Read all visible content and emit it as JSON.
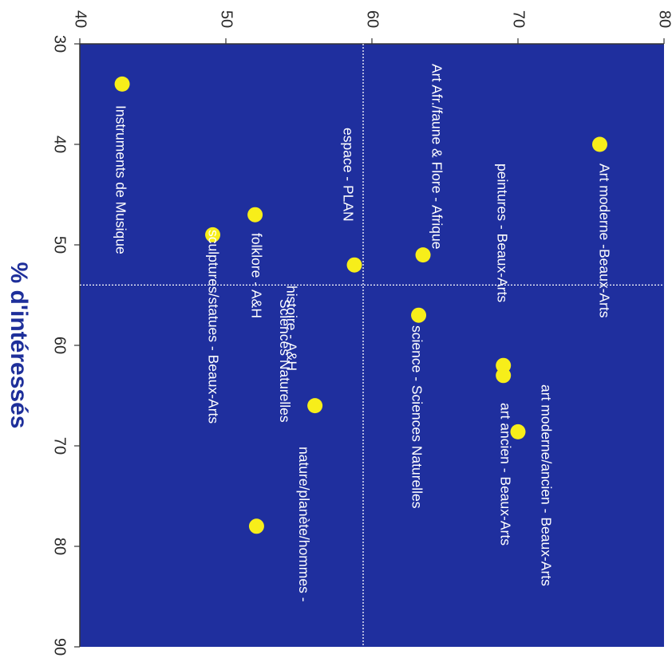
{
  "chart_data": {
    "type": "scatter",
    "xlabel": "% d'intéressés",
    "xlim": [
      30,
      90
    ],
    "ylim": [
      40,
      80
    ],
    "x_ticks": [
      "30",
      "40",
      "50",
      "60",
      "70",
      "80",
      "90"
    ],
    "y_ticks": [
      "40",
      "50",
      "60",
      "70",
      "80"
    ],
    "reference_lines": {
      "x": 54,
      "y": 59.4
    },
    "colors": {
      "plot_background": "#1f2f9e",
      "point": "#f7ee1a",
      "label": "#ffffff",
      "axis_title": "#1e2f9a",
      "reference_line": "#ffffff"
    },
    "points": [
      {
        "label": "Art moderne -Beaux-Arts",
        "x": 40,
        "y": 75.6
      },
      {
        "label": "peintures - Beaux-Arts",
        "x": 62,
        "y": 69
      },
      {
        "label": "art ancien - Beaux-Arts",
        "x": 63,
        "y": 69
      },
      {
        "label": "art moderne/ancien - Beaux-Arts",
        "x": 68.6,
        "y": 70
      },
      {
        "label": "Art Afr./faune & Flore - Afrique",
        "x": 51,
        "y": 63.5
      },
      {
        "label": "science - Sciences Naturelles",
        "x": 57,
        "y": 63.2
      },
      {
        "label": "espace - PLAN",
        "x": 52,
        "y": 58.8
      },
      {
        "label": "histoire - A&H",
        "x": 66,
        "y": 56.1
      },
      {
        "label": "nature/planète/hommes - Sciences Naturelles",
        "x": 78,
        "y": 52.1
      },
      {
        "label": "folklore - A&H",
        "x": 47,
        "y": 52
      },
      {
        "label": "sculptures/statues - Beaux-Arts",
        "x": 49,
        "y": 49.1
      },
      {
        "label": "Instruments de Musique",
        "x": 34,
        "y": 42.9
      }
    ]
  }
}
